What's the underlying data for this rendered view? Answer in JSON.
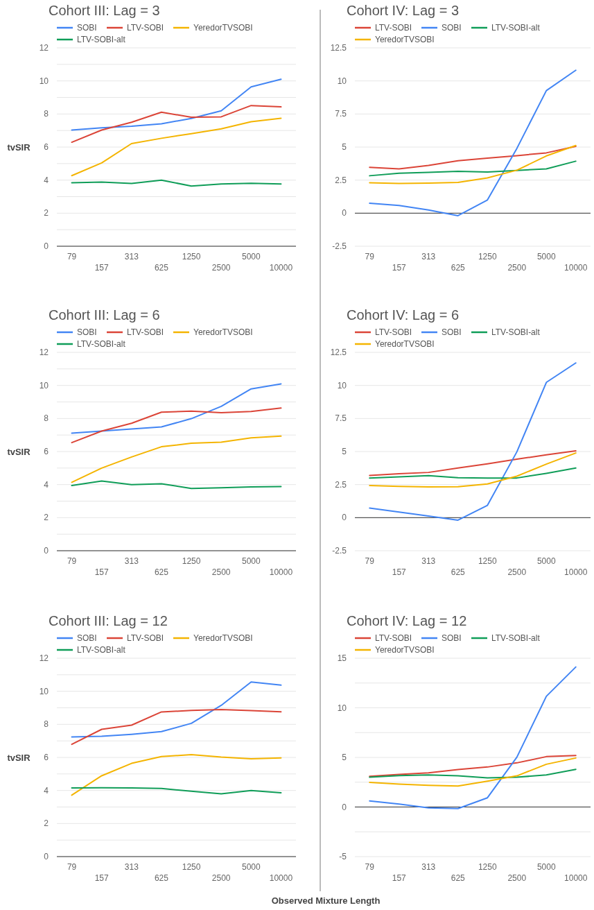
{
  "chart_data": [
    {
      "type": "line",
      "title": "Cohort III: Lag = 3",
      "ylabel": "tvSIR",
      "categories": [
        "79",
        "157",
        "313",
        "625",
        "1250",
        "2500",
        "5000",
        "10000"
      ],
      "ylim": [
        0,
        12
      ],
      "yticks": [
        0,
        {
          "value": 1,
          "label": null
        },
        2,
        {
          "value": 3,
          "label": null
        },
        4,
        {
          "value": 5,
          "label": null
        },
        6,
        {
          "value": 7,
          "label": null
        },
        8,
        {
          "value": 9,
          "label": null
        },
        10,
        {
          "value": 11,
          "label": null
        },
        12
      ],
      "grid": "y",
      "legend": "top",
      "series": [
        {
          "name": "SOBI",
          "color": "#4285f4",
          "values": [
            7.03,
            7.16,
            7.26,
            7.41,
            7.73,
            8.19,
            9.64,
            10.1
          ]
        },
        {
          "name": "LTV-SOBI",
          "color": "#db4437",
          "values": [
            6.29,
            7.03,
            7.5,
            8.11,
            7.8,
            7.83,
            8.51,
            8.43
          ]
        },
        {
          "name": "YeredorTVSOBI",
          "color": "#f4b400",
          "values": [
            4.27,
            5.04,
            6.21,
            6.53,
            6.81,
            7.1,
            7.53,
            7.74
          ]
        },
        {
          "name": "LTV-SOBI-alt",
          "color": "#0f9d58",
          "values": [
            3.84,
            3.88,
            3.8,
            4.0,
            3.64,
            3.77,
            3.81,
            3.77
          ]
        }
      ]
    },
    {
      "type": "line",
      "title": "Cohort IV: Lag = 3",
      "categories": [
        "79",
        "157",
        "313",
        "625",
        "1250",
        "2500",
        "5000",
        "10000"
      ],
      "ylim": [
        -2.5,
        12.5
      ],
      "yticks": [
        -2.5,
        0,
        2.5,
        5,
        7.5,
        10,
        12.5
      ],
      "grid": "y",
      "legend": "top",
      "series": [
        {
          "name": "LTV-SOBI",
          "color": "#db4437",
          "values": [
            3.47,
            3.35,
            3.61,
            3.96,
            4.16,
            4.35,
            4.56,
            5.05
          ]
        },
        {
          "name": "SOBI",
          "color": "#4285f4",
          "values": [
            0.75,
            0.58,
            0.24,
            -0.19,
            1.0,
            4.9,
            9.27,
            10.81
          ]
        },
        {
          "name": "LTV-SOBI-alt",
          "color": "#0f9d58",
          "values": [
            2.83,
            3.02,
            3.09,
            3.16,
            3.11,
            3.23,
            3.35,
            3.93
          ]
        },
        {
          "name": "YeredorTVSOBI",
          "color": "#f4b400",
          "values": [
            2.3,
            2.25,
            2.27,
            2.32,
            2.67,
            3.25,
            4.33,
            5.12
          ]
        }
      ]
    },
    {
      "type": "line",
      "title": "Cohort III: Lag = 6",
      "ylabel": "tvSIR",
      "categories": [
        "79",
        "157",
        "313",
        "625",
        "1250",
        "2500",
        "5000",
        "10000"
      ],
      "ylim": [
        0,
        12
      ],
      "yticks": [
        0,
        {
          "value": 1,
          "label": null
        },
        2,
        {
          "value": 3,
          "label": null
        },
        4,
        {
          "value": 5,
          "label": null
        },
        6,
        {
          "value": 7,
          "label": null
        },
        8,
        {
          "value": 9,
          "label": null
        },
        10,
        {
          "value": 11,
          "label": null
        },
        12
      ],
      "grid": "y",
      "legend": "top",
      "series": [
        {
          "name": "SOBI",
          "color": "#4285f4",
          "values": [
            7.11,
            7.24,
            7.36,
            7.49,
            7.99,
            8.73,
            9.79,
            10.09
          ]
        },
        {
          "name": "LTV-SOBI",
          "color": "#db4437",
          "values": [
            6.54,
            7.24,
            7.71,
            8.38,
            8.44,
            8.35,
            8.42,
            8.63
          ]
        },
        {
          "name": "YeredorTVSOBI",
          "color": "#f4b400",
          "values": [
            4.14,
            5.0,
            5.67,
            6.29,
            6.5,
            6.57,
            6.83,
            6.93
          ]
        },
        {
          "name": "LTV-SOBI-alt",
          "color": "#0f9d58",
          "values": [
            3.94,
            4.22,
            4.0,
            4.05,
            3.77,
            3.81,
            3.86,
            3.88
          ]
        }
      ]
    },
    {
      "type": "line",
      "title": "Cohort IV: Lag = 6",
      "categories": [
        "79",
        "157",
        "313",
        "625",
        "1250",
        "2500",
        "5000",
        "10000"
      ],
      "ylim": [
        -2.5,
        12.5
      ],
      "yticks": [
        -2.5,
        0,
        2.5,
        5,
        7.5,
        10,
        12.5
      ],
      "grid": "y",
      "legend": "top",
      "series": [
        {
          "name": "LTV-SOBI",
          "color": "#db4437",
          "values": [
            3.19,
            3.32,
            3.42,
            3.75,
            4.07,
            4.42,
            4.75,
            5.05
          ]
        },
        {
          "name": "SOBI",
          "color": "#4285f4",
          "values": [
            0.72,
            0.42,
            0.12,
            -0.19,
            0.93,
            4.98,
            10.23,
            11.7
          ]
        },
        {
          "name": "LTV-SOBI-alt",
          "color": "#0f9d58",
          "values": [
            3.0,
            3.09,
            3.18,
            3.02,
            3.0,
            3.0,
            3.35,
            3.75
          ]
        },
        {
          "name": "YeredorTVSOBI",
          "color": "#f4b400",
          "values": [
            2.43,
            2.37,
            2.32,
            2.34,
            2.55,
            3.14,
            4.05,
            4.89
          ]
        }
      ]
    },
    {
      "type": "line",
      "title": "Cohort III: Lag = 12",
      "ylabel": "tvSIR",
      "xlabel": "Observed Mixture Length",
      "categories": [
        "79",
        "157",
        "313",
        "625",
        "1250",
        "2500",
        "5000",
        "10000"
      ],
      "ylim": [
        0,
        12
      ],
      "yticks": [
        0,
        {
          "value": 1,
          "label": null
        },
        2,
        {
          "value": 3,
          "label": null
        },
        4,
        {
          "value": 5,
          "label": null
        },
        6,
        {
          "value": 7,
          "label": null
        },
        8,
        {
          "value": 9,
          "label": null
        },
        10,
        {
          "value": 11,
          "label": null
        },
        12
      ],
      "grid": "y",
      "legend": "top",
      "series": [
        {
          "name": "SOBI",
          "color": "#4285f4",
          "values": [
            7.24,
            7.28,
            7.4,
            7.56,
            8.06,
            9.15,
            10.56,
            10.37
          ]
        },
        {
          "name": "LTV-SOBI",
          "color": "#db4437",
          "values": [
            6.79,
            7.7,
            7.95,
            8.75,
            8.84,
            8.9,
            8.83,
            8.76
          ]
        },
        {
          "name": "YeredorTVSOBI",
          "color": "#f4b400",
          "values": [
            3.72,
            4.89,
            5.64,
            6.05,
            6.17,
            6.02,
            5.92,
            5.97
          ]
        },
        {
          "name": "LTV-SOBI-alt",
          "color": "#0f9d58",
          "values": [
            4.15,
            4.16,
            4.15,
            4.12,
            3.95,
            3.8,
            4.0,
            3.86
          ]
        }
      ]
    },
    {
      "type": "line",
      "title": "Cohort IV: Lag = 12",
      "categories": [
        "79",
        "157",
        "313",
        "625",
        "1250",
        "2500",
        "5000",
        "10000"
      ],
      "ylim": [
        -5,
        15
      ],
      "yticks": [
        -5,
        {
          "value": -2.5,
          "label": null
        },
        0,
        {
          "value": 2.5,
          "label": null
        },
        5,
        {
          "value": 7.5,
          "label": null
        },
        10,
        {
          "value": 12.5,
          "label": null
        },
        15
      ],
      "grid": "y",
      "legend": "top",
      "series": [
        {
          "name": "LTV-SOBI",
          "color": "#db4437",
          "values": [
            3.1,
            3.28,
            3.45,
            3.77,
            4.03,
            4.45,
            5.08,
            5.19
          ]
        },
        {
          "name": "SOBI",
          "color": "#4285f4",
          "values": [
            0.61,
            0.3,
            -0.09,
            -0.16,
            0.93,
            5.03,
            11.16,
            14.12
          ]
        },
        {
          "name": "LTV-SOBI-alt",
          "color": "#0f9d58",
          "values": [
            3.0,
            3.17,
            3.24,
            3.14,
            2.93,
            3.0,
            3.24,
            3.8
          ]
        },
        {
          "name": "YeredorTVSOBI",
          "color": "#f4b400",
          "values": [
            2.49,
            2.31,
            2.19,
            2.12,
            2.61,
            3.14,
            4.31,
            4.94
          ]
        }
      ]
    }
  ]
}
